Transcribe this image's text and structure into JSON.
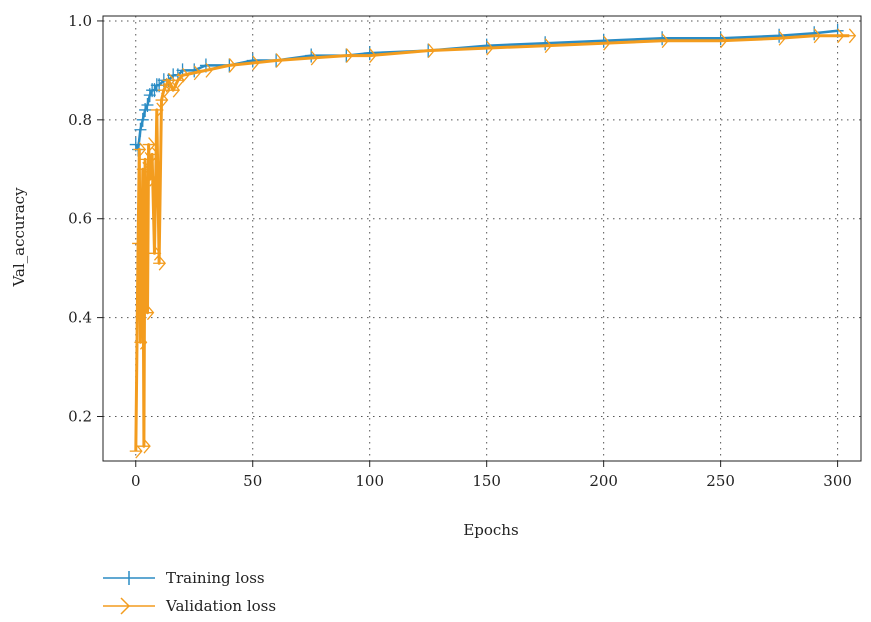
{
  "chart_data": {
    "type": "line",
    "xlabel": "Epochs",
    "ylabel": "Val_accuracy",
    "xlim": [
      -14,
      310
    ],
    "ylim": [
      0.11,
      1.01
    ],
    "xticks": [
      0,
      50,
      100,
      150,
      200,
      250,
      300
    ],
    "yticks": [
      0.2,
      0.4,
      0.6,
      0.8,
      1.0
    ],
    "xtick_labels": [
      "0",
      "50",
      "100",
      "150",
      "200",
      "250",
      "300"
    ],
    "ytick_labels": [
      "0.2",
      "0.4",
      "0.6",
      "0.8",
      "1.0"
    ],
    "grid": true,
    "legend_position": "bottom-left, below plot",
    "series": [
      {
        "name": "Training loss",
        "color": "#2b8cc4",
        "marker": "vline",
        "x": [
          0,
          1,
          2,
          3,
          4,
          5,
          6,
          7,
          8,
          9,
          10,
          12,
          14,
          16,
          18,
          20,
          25,
          30,
          40,
          50,
          60,
          75,
          90,
          100,
          125,
          150,
          175,
          200,
          225,
          250,
          275,
          290,
          300
        ],
        "y": [
          0.75,
          0.74,
          0.78,
          0.8,
          0.82,
          0.83,
          0.85,
          0.86,
          0.86,
          0.87,
          0.87,
          0.88,
          0.88,
          0.89,
          0.89,
          0.9,
          0.9,
          0.91,
          0.91,
          0.92,
          0.92,
          0.93,
          0.93,
          0.935,
          0.94,
          0.95,
          0.955,
          0.96,
          0.965,
          0.965,
          0.97,
          0.975,
          0.98
        ]
      },
      {
        "name": "Validation loss",
        "color": "#f39c1e",
        "marker": "tri_right",
        "x": [
          0,
          1,
          1.5,
          2,
          3,
          3.5,
          4,
          5,
          5.5,
          6,
          7,
          8,
          9,
          10,
          11,
          12,
          13,
          14,
          16,
          18,
          20,
          25,
          30,
          40,
          50,
          60,
          75,
          90,
          100,
          125,
          150,
          175,
          200,
          225,
          250,
          275,
          290,
          300,
          305
        ],
        "y": [
          0.13,
          0.55,
          0.74,
          0.35,
          0.7,
          0.14,
          0.72,
          0.41,
          0.75,
          0.68,
          0.73,
          0.53,
          0.82,
          0.51,
          0.84,
          0.86,
          0.87,
          0.88,
          0.86,
          0.88,
          0.89,
          0.895,
          0.9,
          0.91,
          0.915,
          0.92,
          0.925,
          0.93,
          0.93,
          0.94,
          0.945,
          0.95,
          0.955,
          0.96,
          0.96,
          0.965,
          0.97,
          0.97,
          0.97
        ]
      }
    ]
  }
}
